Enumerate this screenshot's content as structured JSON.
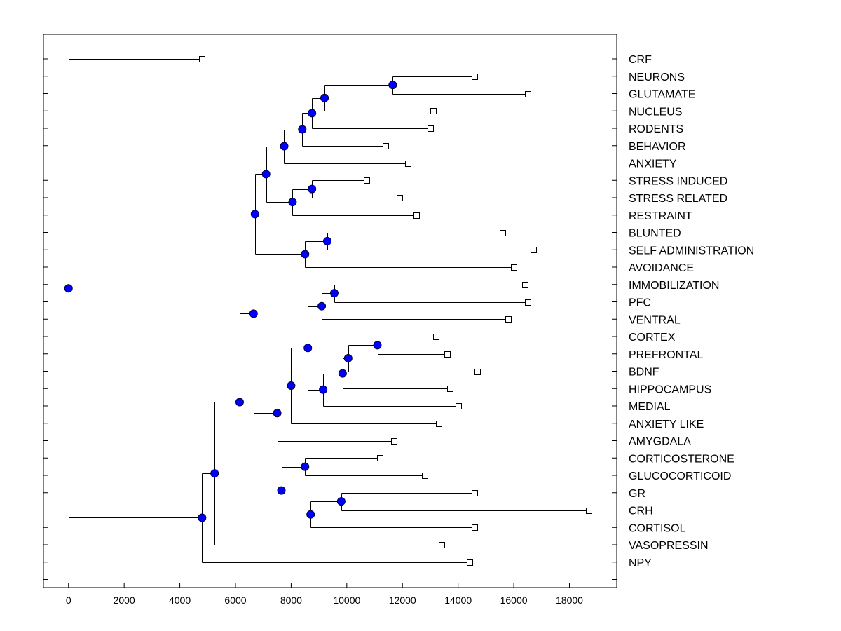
{
  "chart_data": {
    "type": "dendrogram",
    "title": "",
    "xlabel": "",
    "ylabel": "",
    "xlim": [
      -900,
      19700
    ],
    "xticks": [
      0,
      2000,
      4000,
      6000,
      8000,
      10000,
      12000,
      14000,
      16000,
      18000
    ],
    "tick_labels": [
      "0",
      "2000",
      "4000",
      "6000",
      "8000",
      "10000",
      "12000",
      "14000",
      "16000",
      "18000"
    ],
    "grid": false,
    "leaf_marker_color": "#ffffff",
    "node_marker_color": "#0000ff",
    "leaves": [
      {
        "id": "CRF",
        "label": "CRF",
        "x": 4800
      },
      {
        "id": "NEURONS",
        "label": "NEURONS",
        "x": 14600
      },
      {
        "id": "GLUTAMATE",
        "label": "GLUTAMATE",
        "x": 16500
      },
      {
        "id": "NUCLEUS",
        "label": "NUCLEUS",
        "x": 13100
      },
      {
        "id": "RODENTS",
        "label": "RODENTS",
        "x": 13000
      },
      {
        "id": "BEHAVIOR",
        "label": "BEHAVIOR",
        "x": 11400
      },
      {
        "id": "ANXIETY",
        "label": "ANXIETY",
        "x": 12200
      },
      {
        "id": "STRESS_INDUCED",
        "label": "STRESS INDUCED",
        "x": 10700
      },
      {
        "id": "STRESS_RELATED",
        "label": "STRESS RELATED",
        "x": 11900
      },
      {
        "id": "RESTRAINT",
        "label": "RESTRAINT",
        "x": 12500
      },
      {
        "id": "BLUNTED",
        "label": "BLUNTED",
        "x": 15600
      },
      {
        "id": "SELF_ADMINISTRATION",
        "label": "SELF ADMINISTRATION",
        "x": 16700
      },
      {
        "id": "AVOIDANCE",
        "label": "AVOIDANCE",
        "x": 16000
      },
      {
        "id": "IMMOBILIZATION",
        "label": "IMMOBILIZATION",
        "x": 16400
      },
      {
        "id": "PFC",
        "label": "PFC",
        "x": 16500
      },
      {
        "id": "VENTRAL",
        "label": "VENTRAL",
        "x": 15800
      },
      {
        "id": "CORTEX",
        "label": "CORTEX",
        "x": 13200
      },
      {
        "id": "PREFRONTAL",
        "label": "PREFRONTAL",
        "x": 13600
      },
      {
        "id": "BDNF",
        "label": "BDNF",
        "x": 14700
      },
      {
        "id": "HIPPOCAMPUS",
        "label": "HIPPOCAMPUS",
        "x": 13700
      },
      {
        "id": "MEDIAL",
        "label": "MEDIAL",
        "x": 14000
      },
      {
        "id": "ANXIETY_LIKE",
        "label": "ANXIETY LIKE",
        "x": 13300
      },
      {
        "id": "AMYGDALA",
        "label": "AMYGDALA",
        "x": 11700
      },
      {
        "id": "CORTICOSTERONE",
        "label": "CORTICOSTERONE",
        "x": 11200
      },
      {
        "id": "GLUCOCORTICOID",
        "label": "GLUCOCORTICOID",
        "x": 12800
      },
      {
        "id": "GR",
        "label": "GR",
        "x": 14600
      },
      {
        "id": "CRH",
        "label": "CRH",
        "x": 18700
      },
      {
        "id": "CORTISOL",
        "label": "CORTISOL",
        "x": 14600
      },
      {
        "id": "VASOPRESSIN",
        "label": "VASOPRESSIN",
        "x": 13400
      },
      {
        "id": "NPY",
        "label": "NPY",
        "x": 14400
      }
    ],
    "nodes": [
      {
        "id": "n1",
        "x": 11650,
        "children": [
          "NEURONS",
          "GLUTAMATE"
        ]
      },
      {
        "id": "n2",
        "x": 9200,
        "children": [
          "n1",
          "NUCLEUS"
        ]
      },
      {
        "id": "n3",
        "x": 8750,
        "children": [
          "n2",
          "RODENTS"
        ]
      },
      {
        "id": "n4",
        "x": 8400,
        "children": [
          "n3",
          "BEHAVIOR"
        ]
      },
      {
        "id": "n5",
        "x": 7750,
        "children": [
          "n4",
          "ANXIETY"
        ]
      },
      {
        "id": "n6",
        "x": 8750,
        "children": [
          "STRESS_INDUCED",
          "STRESS_RELATED"
        ]
      },
      {
        "id": "n7",
        "x": 8050,
        "children": [
          "n6",
          "RESTRAINT"
        ]
      },
      {
        "id": "n8",
        "x": 7100,
        "children": [
          "n5",
          "n7"
        ]
      },
      {
        "id": "n9",
        "x": 9300,
        "children": [
          "BLUNTED",
          "SELF_ADMINISTRATION"
        ]
      },
      {
        "id": "n10",
        "x": 8500,
        "children": [
          "n9",
          "AVOIDANCE"
        ]
      },
      {
        "id": "n11",
        "x": 6700,
        "children": [
          "n8",
          "n10"
        ]
      },
      {
        "id": "n12",
        "x": 9550,
        "children": [
          "IMMOBILIZATION",
          "PFC"
        ]
      },
      {
        "id": "n13",
        "x": 9100,
        "children": [
          "n12",
          "VENTRAL"
        ]
      },
      {
        "id": "n14",
        "x": 11100,
        "children": [
          "CORTEX",
          "PREFRONTAL"
        ]
      },
      {
        "id": "n15",
        "x": 10050,
        "children": [
          "n14",
          "BDNF"
        ]
      },
      {
        "id": "n16",
        "x": 9850,
        "children": [
          "n15",
          "HIPPOCAMPUS"
        ]
      },
      {
        "id": "n17",
        "x": 9150,
        "children": [
          "n16",
          "MEDIAL"
        ]
      },
      {
        "id": "n18",
        "x": 8600,
        "children": [
          "n13",
          "n17"
        ]
      },
      {
        "id": "n19",
        "x": 8000,
        "children": [
          "n18",
          "ANXIETY_LIKE"
        ]
      },
      {
        "id": "n20",
        "x": 7500,
        "children": [
          "n19",
          "AMYGDALA"
        ]
      },
      {
        "id": "n21",
        "x": 6650,
        "children": [
          "n11",
          "n20"
        ]
      },
      {
        "id": "n22",
        "x": 8500,
        "children": [
          "CORTICOSTERONE",
          "GLUCOCORTICOID"
        ]
      },
      {
        "id": "n23",
        "x": 9800,
        "children": [
          "GR",
          "CRH"
        ]
      },
      {
        "id": "n24",
        "x": 8700,
        "children": [
          "n23",
          "CORTISOL"
        ]
      },
      {
        "id": "n25",
        "x": 7650,
        "children": [
          "n22",
          "n24"
        ]
      },
      {
        "id": "n26",
        "x": 6150,
        "children": [
          "n21",
          "n25"
        ]
      },
      {
        "id": "n27",
        "x": 5250,
        "children": [
          "n26",
          "VASOPRESSIN"
        ]
      },
      {
        "id": "n28",
        "x": 4800,
        "children": [
          "n27",
          "NPY"
        ]
      },
      {
        "id": "n29",
        "x": 0,
        "children": [
          "CRF",
          "n28"
        ]
      }
    ]
  }
}
